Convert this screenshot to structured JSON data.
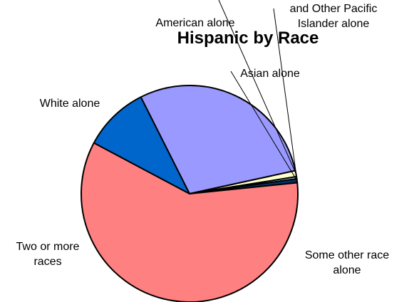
{
  "chart_data": {
    "type": "pie",
    "title": "Hispanic by Race",
    "slices": [
      {
        "label": "Asian alone",
        "value": 0.6,
        "color": "#003366"
      },
      {
        "label": "Some other race alone",
        "value": 59.4,
        "color": "#ff8080"
      },
      {
        "label": "Two or more races",
        "value": 9.8,
        "color": "#0066cc"
      },
      {
        "label": "White alone",
        "value": 29.0,
        "color": "#9999ff"
      },
      {
        "label": "American alone",
        "value": 0.9,
        "color": "#ffffcc"
      },
      {
        "label": "and Other Pacific Islander alone",
        "value": 0.3,
        "color": "#ccffff"
      }
    ],
    "label_lines": [
      {
        "label": "Some other race alone",
        "lines": [
          "Some other race",
          "alone"
        ]
      },
      {
        "label": "Two or more races",
        "lines": [
          "Two or more",
          "races"
        ]
      },
      {
        "label": "White alone",
        "lines": [
          "White alone"
        ]
      },
      {
        "label": "Asian alone",
        "lines": [
          "Asian alone"
        ]
      },
      {
        "label": "American alone",
        "lines": [
          "American alone"
        ]
      },
      {
        "label": "and Other Pacific Islander alone",
        "lines": [
          "and Other Pacific",
          "Islander alone"
        ]
      }
    ],
    "legend": "none"
  }
}
